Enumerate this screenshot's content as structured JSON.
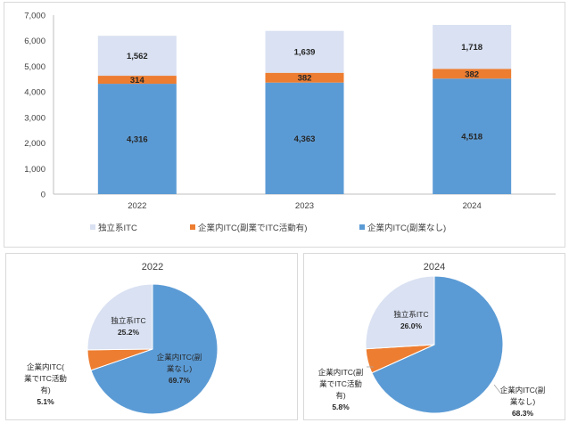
{
  "colors": {
    "independent": "#d9e1f2",
    "side_job": "#ed7d31",
    "no_side_job": "#5b9bd5",
    "axis_text": "#404040",
    "grid": "#d9d9d9"
  },
  "chart_data": [
    {
      "type": "bar",
      "stacked": true,
      "title": "",
      "categories": [
        "2022",
        "2023",
        "2024"
      ],
      "series": [
        {
          "name": "企業内ITC(副業なし)",
          "values": [
            4316,
            4363,
            4518
          ],
          "labels": [
            "4,316",
            "4,363",
            "4,518"
          ]
        },
        {
          "name": "企業内ITC(副業でITC活動有)",
          "values": [
            314,
            382,
            382
          ],
          "labels": [
            "314",
            "382",
            "382"
          ]
        },
        {
          "name": "独立系ITC",
          "values": [
            1562,
            1639,
            1718
          ],
          "labels": [
            "1,562",
            "1,639",
            "1,718"
          ]
        }
      ],
      "y_ticks": [
        "0",
        "1,000",
        "2,000",
        "3,000",
        "4,000",
        "5,000",
        "6,000",
        "7,000"
      ],
      "ylim": [
        0,
        7000
      ],
      "grid": false,
      "legend_position": "bottom",
      "legend": [
        "独立系ITC",
        "企業内ITC(副業でITC活動有)",
        "企業内ITC(副業なし)"
      ]
    },
    {
      "type": "pie",
      "title": "2022",
      "slices": [
        {
          "label_lines": [
            "独立系ITC",
            "25.2%"
          ],
          "value": 25.2
        },
        {
          "label_lines": [
            "企業内ITC(",
            "業でITC活動",
            "有)",
            "5.1%"
          ],
          "value": 5.1
        },
        {
          "label_lines": [
            "企業内ITC(副",
            "業なし)",
            "69.7%"
          ],
          "value": 69.7
        }
      ]
    },
    {
      "type": "pie",
      "title": "2024",
      "slices": [
        {
          "label_lines": [
            "独立系ITC",
            "26.0%"
          ],
          "value": 26.0
        },
        {
          "label_lines": [
            "企業内ITC(副",
            "業でITC活動",
            "有)",
            "5.8%"
          ],
          "value": 5.8
        },
        {
          "label_lines": [
            "企業内ITC(副",
            "業なし)",
            "68.3%"
          ],
          "value": 68.3
        }
      ]
    }
  ]
}
